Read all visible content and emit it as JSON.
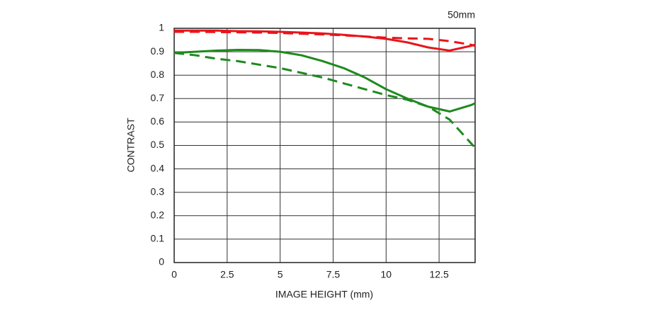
{
  "chart_data": {
    "type": "line",
    "title": "50mm",
    "x_label": "IMAGE HEIGHT (mm)",
    "y_label": "CONTRAST",
    "x": [
      0,
      1,
      2,
      3,
      4,
      5,
      6,
      7,
      8,
      9,
      10,
      11,
      12,
      13,
      14,
      14.2
    ],
    "series": [
      {
        "color": "#e8151b",
        "dashed": false,
        "values": [
          0.99,
          0.99,
          0.99,
          0.988,
          0.987,
          0.985,
          0.982,
          0.978,
          0.972,
          0.965,
          0.955,
          0.94,
          0.918,
          0.905,
          0.925,
          0.93
        ]
      },
      {
        "color": "#e8151b",
        "dashed": true,
        "values": [
          0.985,
          0.985,
          0.984,
          0.983,
          0.982,
          0.98,
          0.977,
          0.974,
          0.97,
          0.965,
          0.96,
          0.957,
          0.955,
          0.945,
          0.93,
          0.925
        ]
      },
      {
        "color": "#1e8a1e",
        "dashed": false,
        "values": [
          0.895,
          0.9,
          0.905,
          0.908,
          0.907,
          0.9,
          0.885,
          0.86,
          0.83,
          0.79,
          0.74,
          0.7,
          0.665,
          0.645,
          0.672,
          0.68
        ]
      },
      {
        "color": "#1e8a1e",
        "dashed": true,
        "values": [
          0.895,
          0.885,
          0.87,
          0.86,
          0.845,
          0.83,
          0.81,
          0.79,
          0.765,
          0.74,
          0.715,
          0.695,
          0.665,
          0.61,
          0.51,
          0.49
        ]
      }
    ],
    "xlim": [
      0,
      14.2
    ],
    "ylim": [
      0,
      1
    ],
    "xticks": [
      0,
      2.5,
      5,
      7.5,
      10,
      12.5
    ],
    "yticks": [
      0,
      0.1,
      0.2,
      0.3,
      0.4,
      0.5,
      0.6,
      0.7,
      0.8,
      0.9,
      1
    ],
    "grid": true
  }
}
